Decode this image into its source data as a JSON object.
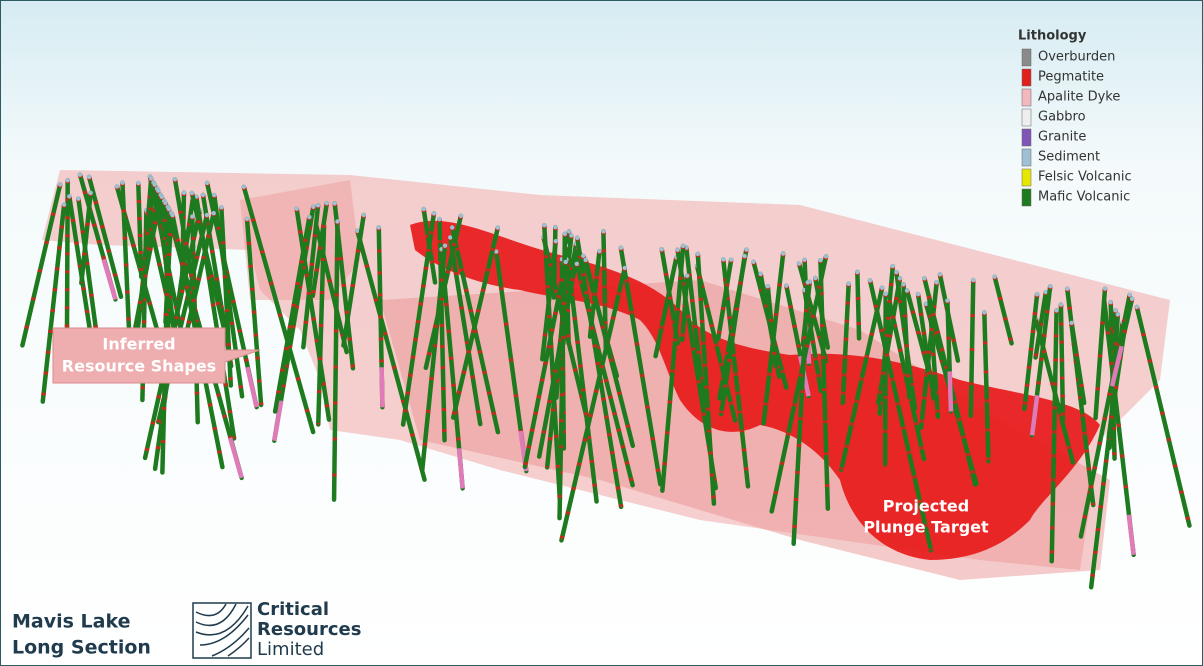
{
  "legend": {
    "title": "Lithology",
    "items": [
      {
        "name": "Overburden",
        "color": "#8a8a8a"
      },
      {
        "name": "Pegmatite",
        "color": "#e0201c"
      },
      {
        "name": "Apalite Dyke",
        "color": "#f2b8bd"
      },
      {
        "name": "Gabbro",
        "color": "#eeeeee"
      },
      {
        "name": "Granite",
        "color": "#7f55b5"
      },
      {
        "name": "Sediment",
        "color": "#9fbfd4"
      },
      {
        "name": "Felsic Volcanic",
        "color": "#e6e600"
      },
      {
        "name": "Mafic Volcanic",
        "color": "#1e7a1e"
      }
    ]
  },
  "callouts": {
    "inferred": [
      "Inferred",
      "Resource Shapes"
    ],
    "target": [
      "Projected",
      "Plunge Target"
    ]
  },
  "footer": {
    "title": [
      "Mavis Lake",
      "Long Section"
    ],
    "logo": [
      "Critical",
      "Resources",
      "Limited"
    ]
  }
}
